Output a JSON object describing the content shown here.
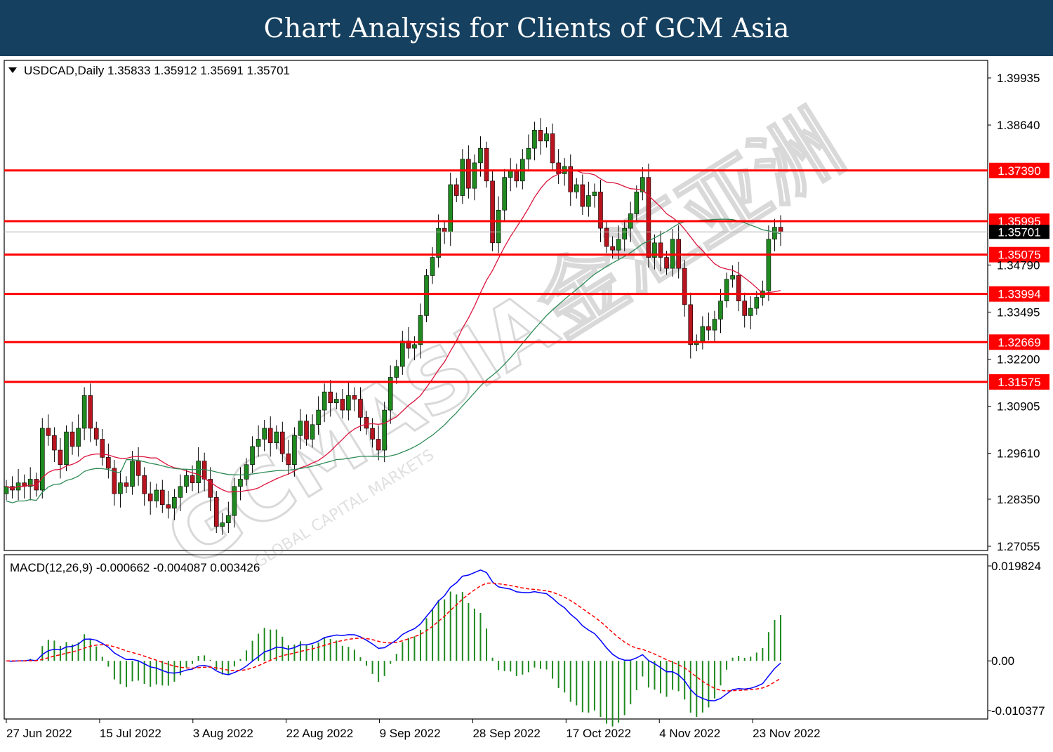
{
  "header": {
    "title": "Chart Analysis for Clients of GCM Asia"
  },
  "chart_data": {
    "type": "candlestick",
    "symbol_info": "USDCAD,Daily  1.35833 1.35912 1.35691 1.35701",
    "price_axis": {
      "min": 1.27055,
      "max": 1.39935,
      "ticks": [
        "1.39935",
        "1.38640",
        "1.34790",
        "1.33495",
        "1.32200",
        "1.30905",
        "1.29610",
        "1.28350",
        "1.27055"
      ],
      "tick_values": [
        1.39935,
        1.3864,
        1.3479,
        1.33495,
        1.322,
        1.30905,
        1.2961,
        1.2835,
        1.27055
      ]
    },
    "levels": [
      {
        "value": 1.3739,
        "label": "1.37390"
      },
      {
        "value": 1.35995,
        "label": "1.35995"
      },
      {
        "value": 1.35075,
        "label": "1.35075"
      },
      {
        "value": 1.33994,
        "label": "1.33994"
      },
      {
        "value": 1.32669,
        "label": "1.32669"
      },
      {
        "value": 1.31575,
        "label": "1.31575"
      }
    ],
    "current_price": {
      "value": 1.35701,
      "label": "1.35701"
    },
    "date_labels": [
      "27 Jun 2022",
      "15 Jul 2022",
      "3 Aug 2022",
      "22 Aug 2022",
      "9 Sep 2022",
      "28 Sep 2022",
      "17 Oct 2022",
      "4 Nov 2022",
      "23 Nov 2022"
    ],
    "closes": [
      1.287,
      1.286,
      1.288,
      1.287,
      1.289,
      1.286,
      1.303,
      1.301,
      1.297,
      1.293,
      1.302,
      1.298,
      1.303,
      1.312,
      1.303,
      1.3,
      1.295,
      1.292,
      1.285,
      1.288,
      1.287,
      1.294,
      1.29,
      1.285,
      1.283,
      1.286,
      1.282,
      1.281,
      1.284,
      1.287,
      1.29,
      1.288,
      1.294,
      1.289,
      1.284,
      1.276,
      1.277,
      1.279,
      1.287,
      1.289,
      1.293,
      1.298,
      1.3,
      1.303,
      1.299,
      1.302,
      1.296,
      1.293,
      1.301,
      1.305,
      1.3,
      1.304,
      1.308,
      1.313,
      1.31,
      1.311,
      1.308,
      1.312,
      1.311,
      1.306,
      1.303,
      1.3,
      1.297,
      1.308,
      1.317,
      1.32,
      1.327,
      1.325,
      1.326,
      1.334,
      1.345,
      1.35,
      1.358,
      1.357,
      1.37,
      1.367,
      1.377,
      1.369,
      1.376,
      1.38,
      1.371,
      1.354,
      1.363,
      1.372,
      1.374,
      1.371,
      1.377,
      1.38,
      1.385,
      1.382,
      1.384,
      1.376,
      1.373,
      1.375,
      1.368,
      1.37,
      1.364,
      1.367,
      1.368,
      1.358,
      1.353,
      1.352,
      1.355,
      1.358,
      1.362,
      1.368,
      1.372,
      1.35,
      1.354,
      1.35,
      1.347,
      1.355,
      1.347,
      1.337,
      1.326,
      1.327,
      1.331,
      1.33,
      1.333,
      1.338,
      1.344,
      1.345,
      1.338,
      1.334,
      1.336,
      1.339,
      1.3408,
      1.355,
      1.3583,
      1.357
    ],
    "macd": {
      "label": "MACD(12,26,9) -0.000662 -0.004087 0.003426",
      "ticks": [
        "0.019824",
        "0.00",
        "-0.010377"
      ],
      "tick_values": [
        0.019824,
        0.0,
        -0.010377
      ],
      "min": -0.010377,
      "max": 0.019824
    },
    "moving_averages": [
      {
        "period": 20,
        "color": "#dc143c"
      },
      {
        "period": 50,
        "color": "#2e8b57"
      }
    ],
    "colors": {
      "bull_body": "#1f8a1f",
      "bear_body": "#b8141f",
      "wick": "#000000",
      "level": "#ff0000",
      "macd_line": "#0000ff",
      "signal_line": "#ff0000",
      "histogram": "#1f8a1f"
    }
  },
  "watermark": {
    "text": "GCMASIA金汇亚洲",
    "sub": "GLOBAL CAPITAL MARKETS"
  }
}
